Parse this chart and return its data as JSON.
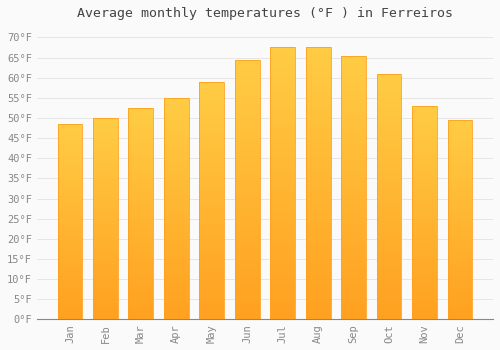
{
  "title": "Average monthly temperatures (°F ) in Ferreiros",
  "months": [
    "Jan",
    "Feb",
    "Mar",
    "Apr",
    "May",
    "Jun",
    "Jul",
    "Aug",
    "Sep",
    "Oct",
    "Nov",
    "Dec"
  ],
  "values": [
    48.5,
    50.0,
    52.5,
    55.0,
    59.0,
    64.5,
    67.5,
    67.5,
    65.5,
    61.0,
    53.0,
    49.5
  ],
  "bar_color_top": "#FFCC44",
  "bar_color_bottom": "#FFA020",
  "background_color": "#FAFAFA",
  "grid_color": "#DDDDDD",
  "yticks": [
    0,
    5,
    10,
    15,
    20,
    25,
    30,
    35,
    40,
    45,
    50,
    55,
    60,
    65,
    70
  ],
  "ylim": [
    0,
    73
  ],
  "title_fontsize": 9.5,
  "tick_fontsize": 7.5,
  "tick_color": "#888888",
  "title_color": "#444444",
  "font_family": "monospace",
  "bar_width": 0.7
}
